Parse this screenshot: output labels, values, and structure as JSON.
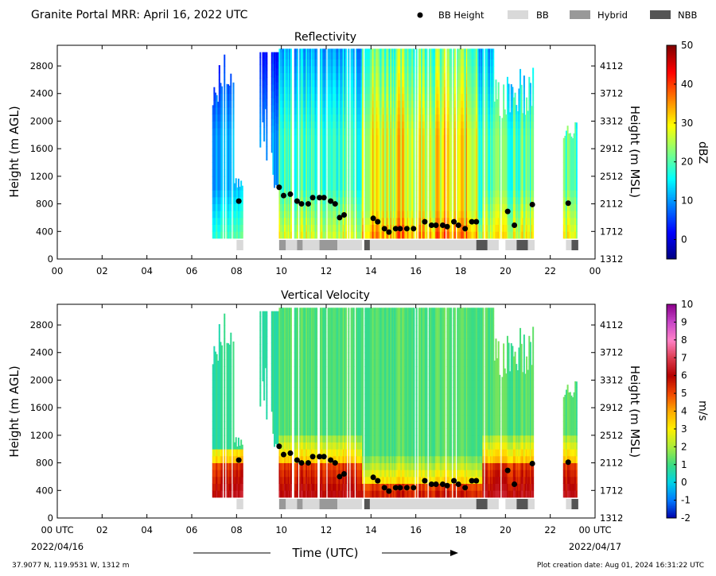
{
  "page": {
    "title": "Granite Portal MRR:  April 16, 2022 UTC",
    "footer_left": "37.9077 N, 119.9531 W, 1312 m",
    "footer_right": "Plot creation date: Aug 01, 2024 16:31:22 UTC",
    "xlabel": "Time (UTC)",
    "x_start_label": "00 UTC",
    "x_end_label": "00 UTC",
    "x_start_date": "2022/04/16",
    "x_end_date": "2022/04/17"
  },
  "legend": [
    {
      "label": "BB Height",
      "kind": "dot",
      "color": "#000000"
    },
    {
      "label": "BB",
      "kind": "box",
      "color": "#d9d9d9"
    },
    {
      "label": "Hybrid",
      "kind": "box",
      "color": "#999999"
    },
    {
      "label": "NBB",
      "kind": "box",
      "color": "#555555"
    }
  ],
  "chart_data": [
    {
      "type": "heatmap",
      "title": "Reflectivity",
      "ylabel": "Height (m AGL)",
      "ylabel_right": "Height (m MSL)",
      "x_ticks": [
        "00",
        "02",
        "04",
        "06",
        "08",
        "10",
        "12",
        "14",
        "16",
        "18",
        "20",
        "22",
        "00"
      ],
      "xlim_hours": [
        0,
        24
      ],
      "y_ticks": [
        0,
        400,
        800,
        1200,
        1600,
        2000,
        2400,
        2800
      ],
      "y_ticks_right": [
        "1312",
        "1712",
        "2112",
        "2512",
        "2912",
        "3312",
        "3712",
        "4112"
      ],
      "ylim": [
        0,
        3100
      ],
      "colorbar": {
        "label": "dBZ",
        "min": -5,
        "max": 50,
        "ticks": [
          "0",
          "10",
          "20",
          "30",
          "40",
          "50"
        ],
        "tick_values": [
          0,
          10,
          20,
          30,
          40,
          50
        ],
        "colormap": "jet"
      }
    },
    {
      "type": "heatmap",
      "title": "Vertical Velocity",
      "ylabel": "Height (m AGL)",
      "ylabel_right": "Height (m MSL)",
      "x_ticks": [
        "00 UTC",
        "02",
        "04",
        "06",
        "08",
        "10",
        "12",
        "14",
        "16",
        "18",
        "20",
        "22",
        "00 UTC"
      ],
      "xlim_hours": [
        0,
        24
      ],
      "y_ticks": [
        0,
        400,
        800,
        1200,
        1600,
        2000,
        2400,
        2800
      ],
      "y_ticks_right": [
        "1312",
        "1712",
        "2112",
        "2512",
        "2912",
        "3312",
        "3712",
        "4112"
      ],
      "ylim": [
        0,
        3100
      ],
      "colorbar": {
        "label": "m/s",
        "min": -2,
        "max": 10,
        "ticks": [
          "-2",
          "-1",
          "0",
          "1",
          "2",
          "3",
          "4",
          "5",
          "6",
          "7",
          "8",
          "9",
          "10"
        ],
        "tick_values": [
          -2,
          -1,
          0,
          1,
          2,
          3,
          4,
          5,
          6,
          7,
          8,
          9,
          10
        ],
        "colormap": "velocity"
      }
    }
  ],
  "bb_height": [
    {
      "t": 8.1,
      "h": 840
    },
    {
      "t": 9.9,
      "h": 1040
    },
    {
      "t": 10.1,
      "h": 920
    },
    {
      "t": 10.4,
      "h": 940
    },
    {
      "t": 10.7,
      "h": 840
    },
    {
      "t": 10.9,
      "h": 800
    },
    {
      "t": 11.2,
      "h": 800
    },
    {
      "t": 11.4,
      "h": 890
    },
    {
      "t": 11.7,
      "h": 890
    },
    {
      "t": 11.9,
      "h": 890
    },
    {
      "t": 12.2,
      "h": 840
    },
    {
      "t": 12.4,
      "h": 800
    },
    {
      "t": 12.6,
      "h": 600
    },
    {
      "t": 12.8,
      "h": 640
    },
    {
      "t": 14.1,
      "h": 590
    },
    {
      "t": 14.3,
      "h": 540
    },
    {
      "t": 14.6,
      "h": 440
    },
    {
      "t": 14.8,
      "h": 390
    },
    {
      "t": 15.1,
      "h": 440
    },
    {
      "t": 15.3,
      "h": 440
    },
    {
      "t": 15.6,
      "h": 440
    },
    {
      "t": 15.9,
      "h": 440
    },
    {
      "t": 16.4,
      "h": 540
    },
    {
      "t": 16.7,
      "h": 490
    },
    {
      "t": 16.9,
      "h": 490
    },
    {
      "t": 17.2,
      "h": 490
    },
    {
      "t": 17.4,
      "h": 470
    },
    {
      "t": 17.7,
      "h": 540
    },
    {
      "t": 17.9,
      "h": 490
    },
    {
      "t": 18.2,
      "h": 440
    },
    {
      "t": 18.5,
      "h": 540
    },
    {
      "t": 18.7,
      "h": 540
    },
    {
      "t": 20.1,
      "h": 690
    },
    {
      "t": 20.4,
      "h": 490
    },
    {
      "t": 21.2,
      "h": 790
    },
    {
      "t": 22.8,
      "h": 810
    }
  ],
  "bb_type_segments": [
    {
      "start": 8.0,
      "end": 8.3,
      "type": "BB"
    },
    {
      "start": 9.9,
      "end": 10.2,
      "type": "Hybrid"
    },
    {
      "start": 10.2,
      "end": 10.7,
      "type": "BB"
    },
    {
      "start": 10.7,
      "end": 10.95,
      "type": "Hybrid"
    },
    {
      "start": 10.95,
      "end": 11.7,
      "type": "BB"
    },
    {
      "start": 11.7,
      "end": 12.5,
      "type": "Hybrid"
    },
    {
      "start": 12.5,
      "end": 13.6,
      "type": "BB"
    },
    {
      "start": 13.7,
      "end": 13.95,
      "type": "NBB"
    },
    {
      "start": 13.95,
      "end": 18.7,
      "type": "BB"
    },
    {
      "start": 18.7,
      "end": 19.2,
      "type": "NBB"
    },
    {
      "start": 19.2,
      "end": 19.7,
      "type": "BB"
    },
    {
      "start": 20.0,
      "end": 20.5,
      "type": "BB"
    },
    {
      "start": 20.5,
      "end": 21.0,
      "type": "NBB"
    },
    {
      "start": 21.0,
      "end": 21.3,
      "type": "BB"
    },
    {
      "start": 22.7,
      "end": 22.95,
      "type": "BB"
    },
    {
      "start": 22.95,
      "end": 23.25,
      "type": "NBB"
    }
  ]
}
